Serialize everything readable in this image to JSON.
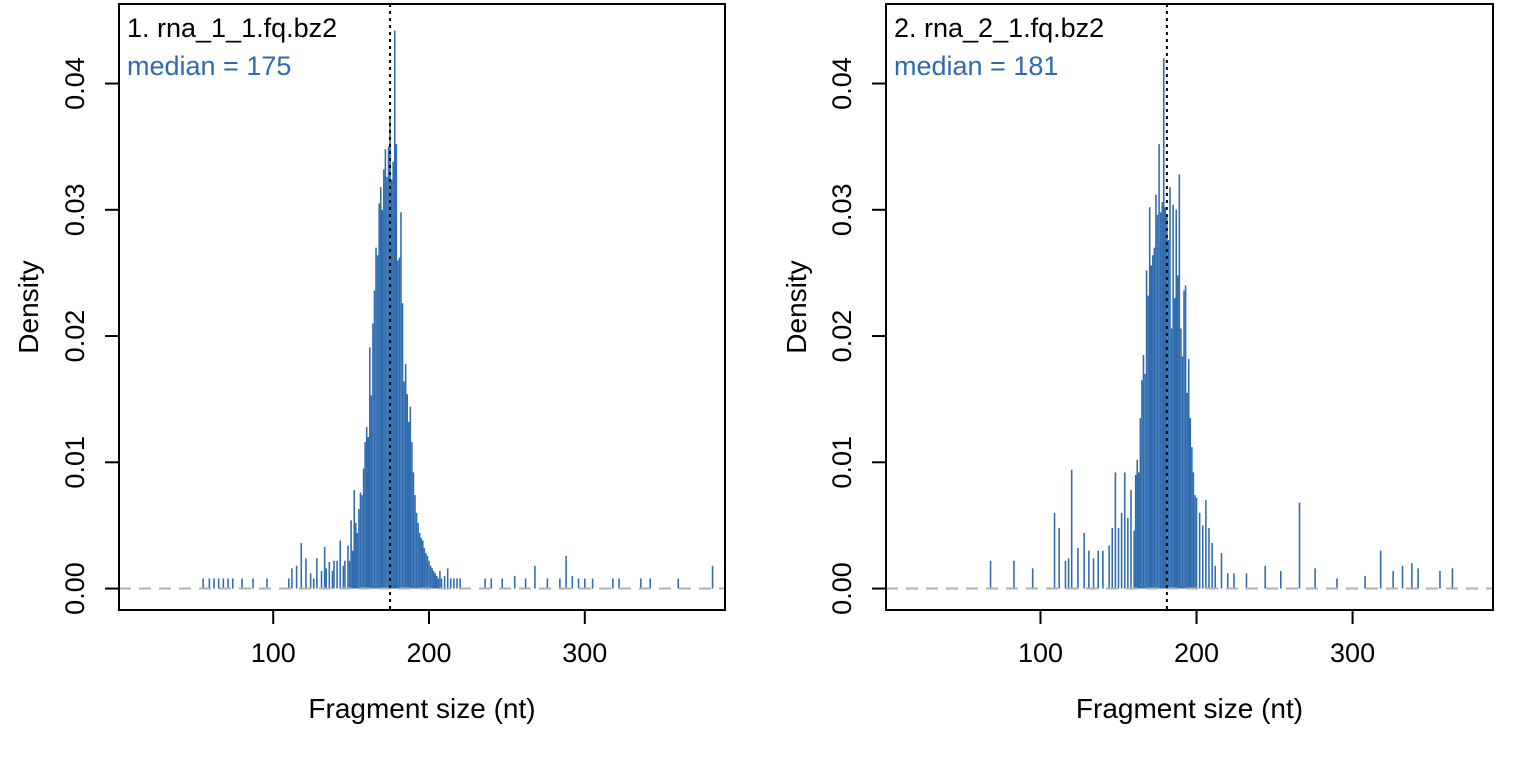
{
  "chart_data": [
    {
      "type": "bar",
      "title": "1. rna_1_1.fq.bz2",
      "annotation": "median = 175",
      "median": 175,
      "xlabel": "Fragment size (nt)",
      "ylabel": "Density",
      "xlim": [
        1,
        390
      ],
      "ylim": [
        -0.0017,
        0.0463
      ],
      "xticks": [
        100,
        200,
        300
      ],
      "yticks": [
        0.0,
        0.01,
        0.02,
        0.03,
        0.04
      ],
      "ytick_labels": [
        "0.00",
        "0.01",
        "0.02",
        "0.03",
        "0.04"
      ],
      "grid": false,
      "bar_color": "#2E6BAE",
      "median_line_color": "#000000",
      "zero_line_color": "#B0B0B0",
      "annotation_color": "#2E6BAE",
      "x": [
        55,
        59,
        62,
        65,
        68,
        71,
        74,
        80,
        87,
        96,
        110,
        112,
        115,
        118,
        121,
        124,
        126,
        128,
        131,
        133,
        134,
        136,
        138,
        139,
        141,
        143,
        145,
        146,
        148,
        149,
        150,
        151,
        152,
        153,
        154,
        155,
        156,
        157,
        158,
        159,
        160,
        161,
        162,
        163,
        164,
        165,
        166,
        167,
        168,
        169,
        170,
        171,
        172,
        173,
        174,
        175,
        176,
        177,
        178,
        179,
        180,
        181,
        182,
        183,
        184,
        185,
        186,
        187,
        188,
        189,
        190,
        191,
        192,
        193,
        194,
        195,
        196,
        197,
        198,
        199,
        200,
        201,
        202,
        203,
        204,
        205,
        206,
        207,
        208,
        210,
        212,
        214,
        216,
        218,
        220,
        236,
        240,
        247,
        255,
        262,
        268,
        276,
        284,
        288,
        292,
        296,
        300,
        305,
        318,
        322,
        336,
        342,
        360,
        382
      ],
      "values": [
        0.0008,
        0.0008,
        0.0008,
        0.0008,
        0.0008,
        0.0008,
        0.0008,
        0.0008,
        0.0008,
        0.0008,
        0.0008,
        0.0016,
        0.0018,
        0.0036,
        0.0024,
        0.0012,
        0.0008,
        0.0024,
        0.0014,
        0.0033,
        0.0016,
        0.0021,
        0.0014,
        0.0022,
        0.0022,
        0.0038,
        0.0018,
        0.0022,
        0.0034,
        0.0022,
        0.0054,
        0.003,
        0.0078,
        0.0052,
        0.0044,
        0.0063,
        0.0076,
        0.0074,
        0.0095,
        0.0116,
        0.0128,
        0.012,
        0.0191,
        0.0153,
        0.021,
        0.0236,
        0.027,
        0.0264,
        0.0305,
        0.0318,
        0.03,
        0.0332,
        0.0348,
        0.0326,
        0.035,
        0.0372,
        0.0324,
        0.0338,
        0.0442,
        0.0352,
        0.026,
        0.0262,
        0.0298,
        0.0226,
        0.0164,
        0.0178,
        0.0154,
        0.0132,
        0.0144,
        0.0116,
        0.0092,
        0.0074,
        0.006,
        0.0052,
        0.0044,
        0.004,
        0.0038,
        0.0032,
        0.0028,
        0.0026,
        0.0022,
        0.0018,
        0.0016,
        0.0014,
        0.0012,
        0.001,
        0.0008,
        0.0014,
        0.0008,
        0.001,
        0.0016,
        0.0008,
        0.0008,
        0.0008,
        0.0008,
        0.0008,
        0.0008,
        0.0008,
        0.001,
        0.0008,
        0.0018,
        0.0008,
        0.0008,
        0.0026,
        0.001,
        0.0008,
        0.0008,
        0.0008,
        0.0008,
        0.0008,
        0.0008,
        0.0008,
        0.0008,
        0.0018
      ]
    },
    {
      "type": "bar",
      "title": "2. rna_2_1.fq.bz2",
      "annotation": "median = 181",
      "median": 181,
      "xlabel": "Fragment size (nt)",
      "ylabel": "Density",
      "xlim": [
        1,
        390
      ],
      "ylim": [
        -0.0017,
        0.0463
      ],
      "xticks": [
        100,
        200,
        300
      ],
      "yticks": [
        0.0,
        0.01,
        0.02,
        0.03,
        0.04
      ],
      "ytick_labels": [
        "0.00",
        "0.01",
        "0.02",
        "0.03",
        "0.04"
      ],
      "grid": false,
      "bar_color": "#2E6BAE",
      "median_line_color": "#000000",
      "zero_line_color": "#B0B0B0",
      "annotation_color": "#2E6BAE",
      "x": [
        68,
        83,
        95,
        109,
        112,
        116,
        118,
        120,
        124,
        128,
        131,
        134,
        137,
        140,
        144,
        146,
        148,
        150,
        152,
        154,
        156,
        158,
        160,
        161,
        162,
        163,
        164,
        165,
        166,
        167,
        168,
        169,
        170,
        171,
        172,
        173,
        174,
        175,
        176,
        177,
        178,
        179,
        180,
        181,
        182,
        183,
        184,
        185,
        186,
        187,
        188,
        189,
        190,
        191,
        192,
        193,
        194,
        195,
        196,
        197,
        198,
        199,
        200,
        202,
        204,
        206,
        208,
        210,
        212,
        216,
        220,
        224,
        232,
        244,
        254,
        266,
        276,
        290,
        308,
        318,
        326,
        332,
        338,
        342,
        356,
        364
      ],
      "values": [
        0.0022,
        0.0022,
        0.0016,
        0.006,
        0.0048,
        0.0022,
        0.0024,
        0.0094,
        0.0032,
        0.0044,
        0.003,
        0.0024,
        0.003,
        0.003,
        0.0034,
        0.0048,
        0.0092,
        0.0048,
        0.006,
        0.0092,
        0.0056,
        0.0078,
        0.0046,
        0.009,
        0.0102,
        0.0092,
        0.0135,
        0.0165,
        0.0185,
        0.017,
        0.0252,
        0.0232,
        0.0302,
        0.0256,
        0.0264,
        0.027,
        0.0312,
        0.0296,
        0.0352,
        0.0298,
        0.0306,
        0.042,
        0.0302,
        0.0296,
        0.0276,
        0.0318,
        0.0206,
        0.0304,
        0.023,
        0.03,
        0.0248,
        0.0328,
        0.0206,
        0.0184,
        0.0236,
        0.024,
        0.0155,
        0.0182,
        0.0135,
        0.0112,
        0.0092,
        0.0074,
        0.0072,
        0.006,
        0.005,
        0.007,
        0.0048,
        0.0036,
        0.0018,
        0.0028,
        0.0012,
        0.0012,
        0.0012,
        0.0018,
        0.0014,
        0.0068,
        0.0016,
        0.0008,
        0.001,
        0.003,
        0.0014,
        0.0018,
        0.002,
        0.0016,
        0.0014,
        0.0016
      ]
    }
  ]
}
